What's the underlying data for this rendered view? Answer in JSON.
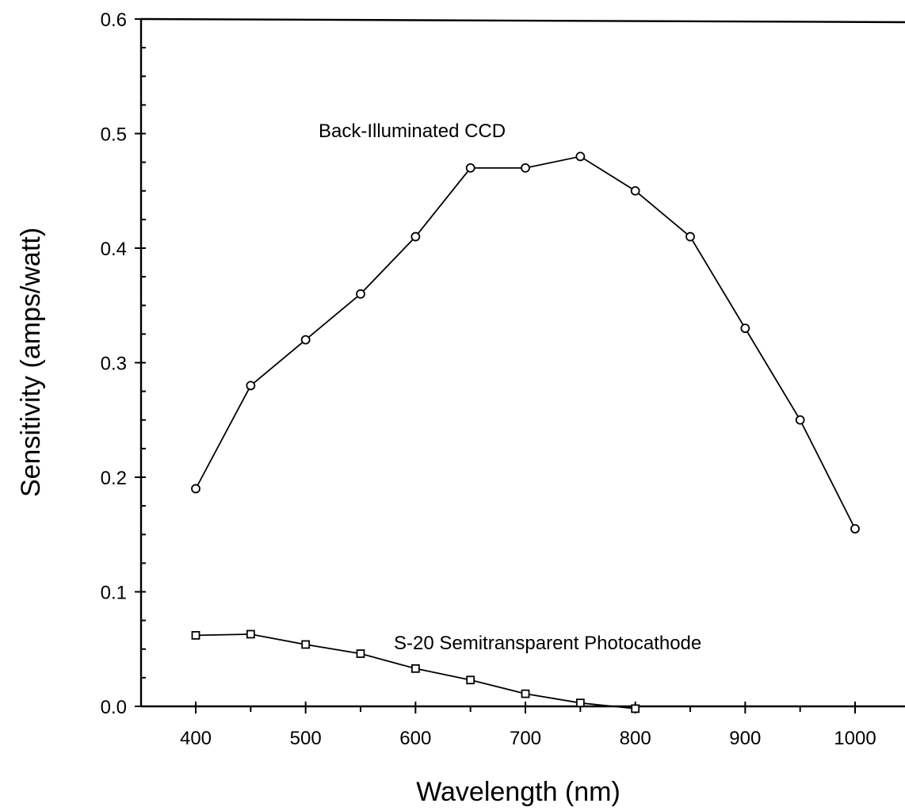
{
  "chart_data": {
    "type": "line",
    "title": "",
    "xlabel": "Wavelength (nm)",
    "ylabel": "Sensitivity (amps/watt)",
    "xlim": [
      350,
      1050
    ],
    "ylim": [
      0.0,
      0.6
    ],
    "x_ticks": [
      400,
      500,
      600,
      700,
      800,
      900,
      1000
    ],
    "x_tick_labels": [
      "400",
      "500",
      "600",
      "700",
      "800",
      "900",
      "1000"
    ],
    "y_ticks": [
      0.0,
      0.1,
      0.2,
      0.3,
      0.4,
      0.5,
      0.6
    ],
    "y_tick_labels": [
      "0.0",
      "0.1",
      "0.2",
      "0.3",
      "0.4",
      "0.5",
      "0.6"
    ],
    "grid": false,
    "legend": "none",
    "series": [
      {
        "name": "Back-Illuminated CCD",
        "marker": "circle",
        "x": [
          400,
          450,
          500,
          550,
          600,
          650,
          700,
          750,
          800,
          850,
          900,
          950,
          1000
        ],
        "y": [
          0.19,
          0.28,
          0.32,
          0.36,
          0.41,
          0.47,
          0.47,
          0.48,
          0.45,
          0.41,
          0.33,
          0.25,
          0.155
        ]
      },
      {
        "name": "S-20 Semitransparent Photocathode",
        "marker": "square",
        "x": [
          400,
          450,
          500,
          550,
          600,
          650,
          700,
          750,
          800
        ],
        "y": [
          0.062,
          0.063,
          0.054,
          0.046,
          0.033,
          0.023,
          0.011,
          0.003,
          -0.002
        ]
      }
    ]
  }
}
